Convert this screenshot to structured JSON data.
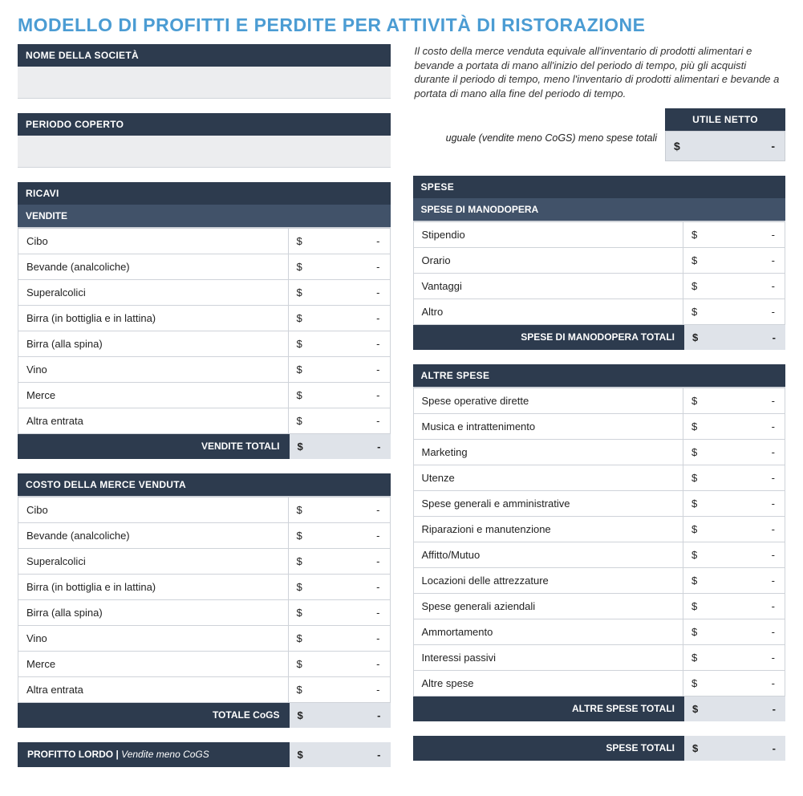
{
  "title": "MODELLO DI PROFITTI E PERDITE PER ATTIVITÀ DI RISTORAZIONE",
  "company_label": "NOME DELLA SOCIETÀ",
  "period_label": "PERIODO COPERTO",
  "cogs_note": "Il costo della merce venduta equivale all'inventario di prodotti alimentari e bevande a portata di mano all'inizio del periodo di tempo, più gli acquisti durante il periodo di tempo, meno l'inventario di prodotti alimentari e bevande a portata di mano alla fine del periodo di tempo.",
  "net_income": {
    "header": "UTILE NETTO",
    "note": "uguale (vendite meno CoGS) meno spese totali",
    "currency": "$",
    "value": "-"
  },
  "currency": "$",
  "dash": "-",
  "revenue": {
    "header": "RICAVI",
    "sales_header": "VENDITE",
    "items": [
      "Cibo",
      "Bevande (analcoliche)",
      "Superalcolici",
      "Birra (in bottiglia e in lattina)",
      "Birra (alla spina)",
      "Vino",
      "Merce",
      "Altra entrata"
    ],
    "total_label": "VENDITE TOTALI"
  },
  "cogs": {
    "header": "COSTO DELLA MERCE VENDUTA",
    "items": [
      "Cibo",
      "Bevande (analcoliche)",
      "Superalcolici",
      "Birra (in bottiglia e in lattina)",
      "Birra (alla spina)",
      "Vino",
      "Merce",
      "Altra entrata"
    ],
    "total_label": "TOTALE CoGS"
  },
  "gross_profit": {
    "label": "PROFITTO LORDO",
    "sub": "Vendite meno CoGS"
  },
  "expenses": {
    "header": "SPESE",
    "labor_header": "SPESE DI MANODOPERA",
    "labor_items": [
      "Stipendio",
      "Orario",
      "Vantaggi",
      "Altro"
    ],
    "labor_total": "SPESE DI MANODOPERA TOTALI",
    "other_header": "ALTRE SPESE",
    "other_items": [
      "Spese operative dirette",
      "Musica e intrattenimento",
      "Marketing",
      "Utenze",
      "Spese generali e amministrative",
      "Riparazioni e manutenzione",
      "Affitto/Mutuo",
      "Locazioni delle attrezzature",
      "Spese generali aziendali",
      "Ammortamento",
      "Interessi passivi",
      "Altre spese"
    ],
    "other_total": "ALTRE SPESE TOTALI",
    "grand_total": "SPESE TOTALI"
  },
  "colors": {
    "title": "#4b9cd3",
    "hdr_dark": "#2d3b4e",
    "hdr_mid": "#415269",
    "input_bg": "#ecedef",
    "total_bg": "#dfe3e9",
    "border": "#cfd3d9"
  }
}
